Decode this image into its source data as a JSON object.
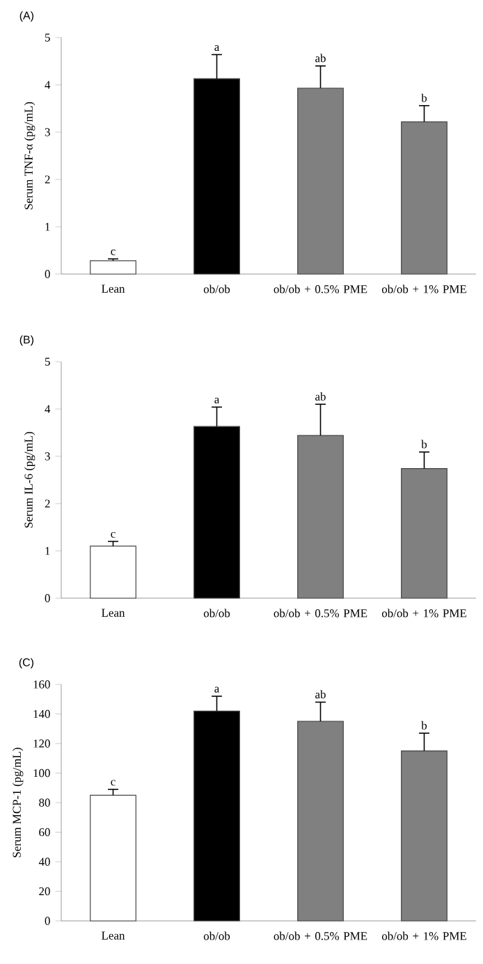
{
  "chart_data": [
    {
      "type": "bar",
      "title": "(A)",
      "ylabel": "Serum TNF-α (pg/mL)",
      "categories": [
        "Lean",
        "ob/ob",
        "ob/ob + 0.5% PME",
        "ob/ob + 1% PME"
      ],
      "values": [
        0.28,
        4.13,
        3.93,
        3.22
      ],
      "colors": [
        "#ffffff",
        "#000000",
        "#808080",
        "#808080"
      ],
      "errors": [
        [
          0.28,
          0.32
        ],
        [
          4.13,
          4.64
        ],
        [
          3.93,
          4.4
        ],
        [
          3.22,
          3.56
        ]
      ],
      "ylim": [
        0,
        5
      ],
      "yticks": [
        0,
        1,
        2,
        3,
        4,
        5
      ],
      "annotations": [
        {
          "text": "c",
          "x": "Lean",
          "y": 0.32
        },
        {
          "text": "a",
          "x": "ob/ob",
          "y": 4.64
        },
        {
          "text": "ab",
          "x": "ob/ob + 0.5% PME",
          "y": 4.4
        },
        {
          "text": "b",
          "x": "ob/ob + 1% PME",
          "y": 3.56
        }
      ]
    },
    {
      "type": "bar",
      "title": "(B)",
      "ylabel": "Serum IL-6 (pg/mL)",
      "categories": [
        "Lean",
        "ob/ob",
        "ob/ob + 0.5% PME",
        "ob/ob + 1% PME"
      ],
      "values": [
        1.1,
        3.63,
        3.44,
        2.74
      ],
      "colors": [
        "#ffffff",
        "#000000",
        "#808080",
        "#808080"
      ],
      "errors": [
        [
          1.1,
          1.2
        ],
        [
          3.63,
          4.04
        ],
        [
          3.44,
          4.1
        ],
        [
          2.74,
          3.09
        ]
      ],
      "ylim": [
        0,
        5
      ],
      "yticks": [
        0,
        1,
        2,
        3,
        4,
        5
      ],
      "annotations": [
        {
          "text": "c",
          "x": "Lean",
          "y": 1.2
        },
        {
          "text": "a",
          "x": "ob/ob",
          "y": 4.04
        },
        {
          "text": "ab",
          "x": "ob/ob + 0.5% PME",
          "y": 4.1
        },
        {
          "text": "b",
          "x": "ob/ob + 1% PME",
          "y": 3.09
        }
      ]
    },
    {
      "type": "bar",
      "title": "(C)",
      "ylabel": "Serum MCP-1 (pg/mL)",
      "categories": [
        "Lean",
        "ob/ob",
        "ob/ob + 0.5% PME",
        "ob/ob + 1% PME"
      ],
      "values": [
        85,
        142,
        135,
        115
      ],
      "colors": [
        "#ffffff",
        "#000000",
        "#808080",
        "#808080"
      ],
      "errors": [
        [
          85,
          89
        ],
        [
          142,
          152
        ],
        [
          135,
          148
        ],
        [
          115,
          127
        ]
      ],
      "ylim": [
        0,
        160
      ],
      "yticks": [
        0,
        20,
        40,
        60,
        80,
        100,
        120,
        140,
        160
      ],
      "annotations": [
        {
          "text": "c",
          "x": "Lean",
          "y": 89
        },
        {
          "text": "a",
          "x": "ob/ob",
          "y": 152
        },
        {
          "text": "ab",
          "x": "ob/ob + 0.5% PME",
          "y": 148
        },
        {
          "text": "b",
          "x": "ob/ob + 1% PME",
          "y": 127
        }
      ]
    }
  ]
}
